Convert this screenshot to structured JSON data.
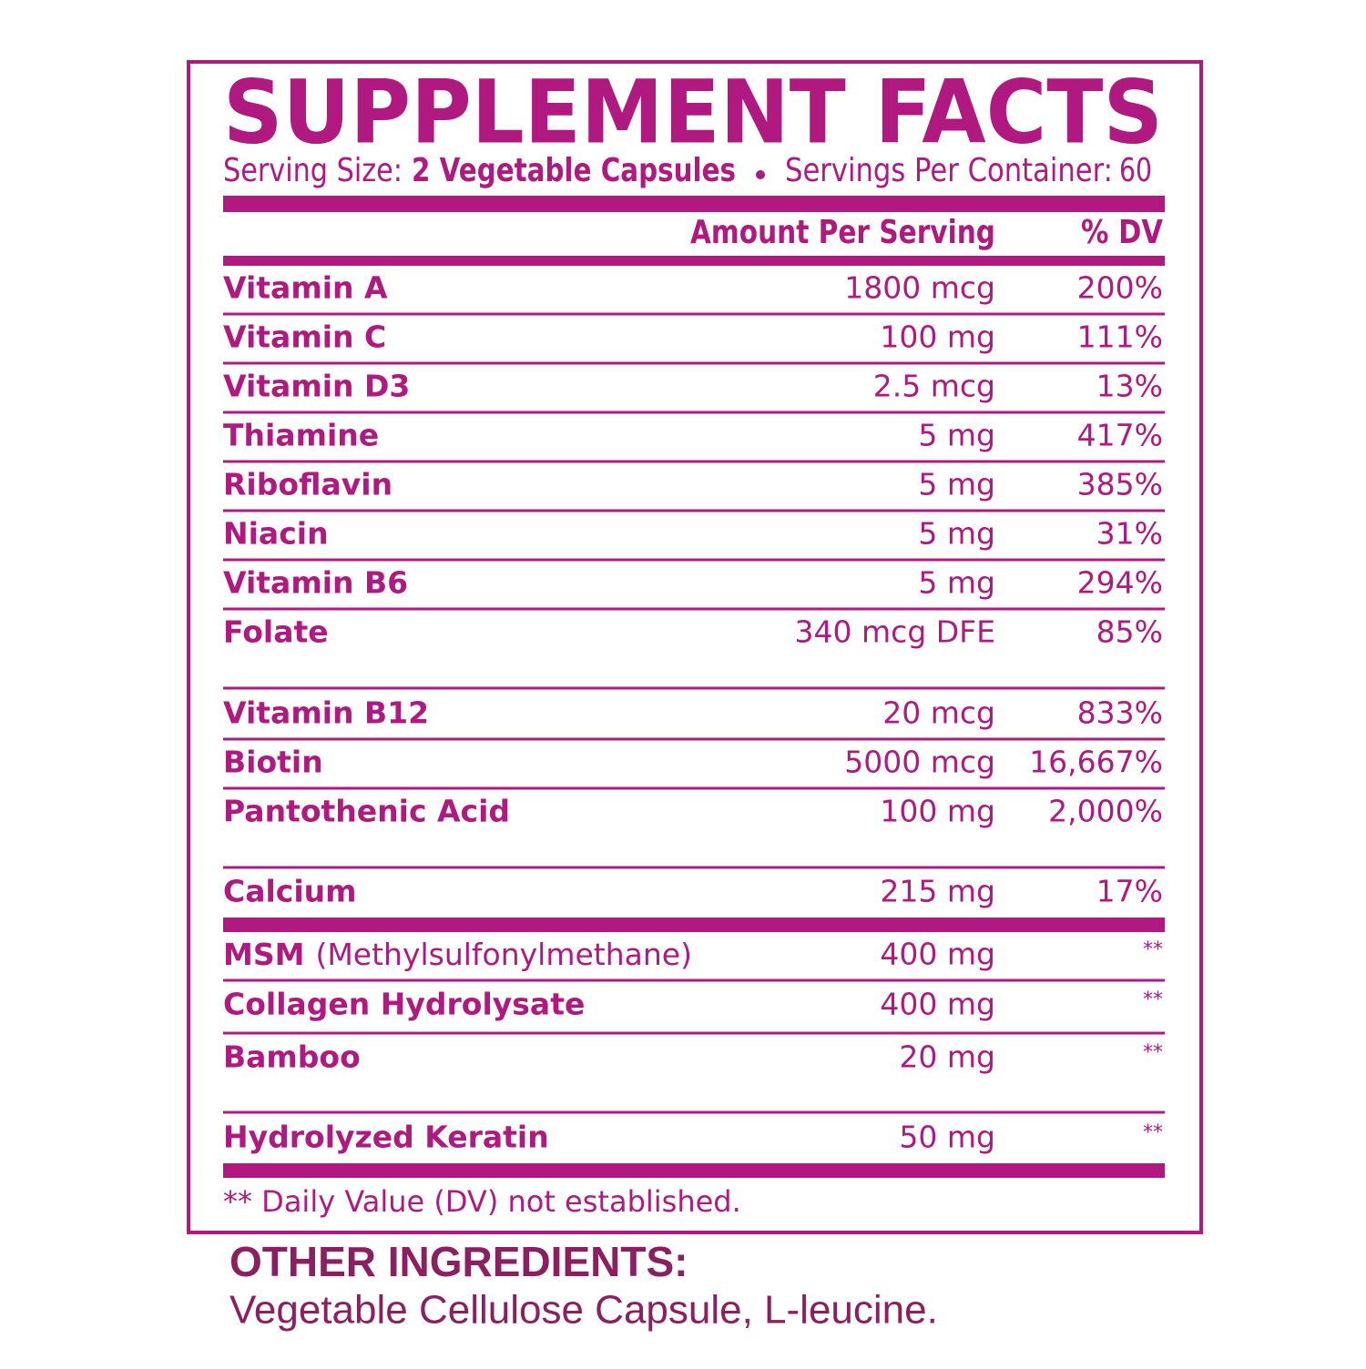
{
  "title": "SUPPLEMENT FACTS",
  "serving": {
    "size_label": "Serving Size:",
    "size": "2 Vegetable Capsules",
    "container_label": "Servings Per Container:",
    "container": "60"
  },
  "table": {
    "header": {
      "amount": "Amount Per Serving",
      "dv": "% DV"
    },
    "rows": [
      {
        "name": "Vitamin A",
        "amount": "1800 mcg",
        "dv": "200%"
      },
      {
        "name": "Vitamin C",
        "amount": "100 mg",
        "dv": "111%"
      },
      {
        "name": "Vitamin D3",
        "amount": "2.5 mcg",
        "dv": "13%"
      },
      {
        "name": "Thiamine",
        "amount": "5 mg",
        "dv": "417%"
      },
      {
        "name": "Riboflavin",
        "amount": "5 mg",
        "dv": "385%"
      },
      {
        "name": "Niacin",
        "amount": "5 mg",
        "dv": "31%"
      },
      {
        "name": "Vitamin B6",
        "amount": "5 mg",
        "dv": "294%"
      },
      {
        "name": "Folate",
        "amount": "340 mcg DFE",
        "dv": "85%"
      },
      {
        "name": "Vitamin B12",
        "amount": "20 mcg",
        "dv": "833%"
      },
      {
        "name": "Biotin",
        "amount": "5000 mcg",
        "dv": "16,667%"
      },
      {
        "name": "Pantothenic Acid",
        "amount": "100 mg",
        "dv": "2,000%"
      },
      {
        "name": "Calcium",
        "amount": "215 mg",
        "dv": "17%"
      },
      {
        "name": "MSM",
        "note": "(Methylsulfonylmethane)",
        "amount": "400 mg",
        "dv": "**"
      },
      {
        "name": "Collagen Hydrolysate",
        "amount": "400 mg",
        "dv": "**"
      },
      {
        "name": "Bamboo",
        "amount": "20 mg",
        "dv": "**"
      },
      {
        "name": "Hydrolyzed Keratin",
        "amount": "50 mg",
        "dv": "**"
      }
    ]
  },
  "footnote": "** Daily Value (DV) not established.",
  "other_ingredients": {
    "title": "OTHER INGREDIENTS:",
    "text": "Vegetable Cellulose Capsule, L-leucine."
  }
}
